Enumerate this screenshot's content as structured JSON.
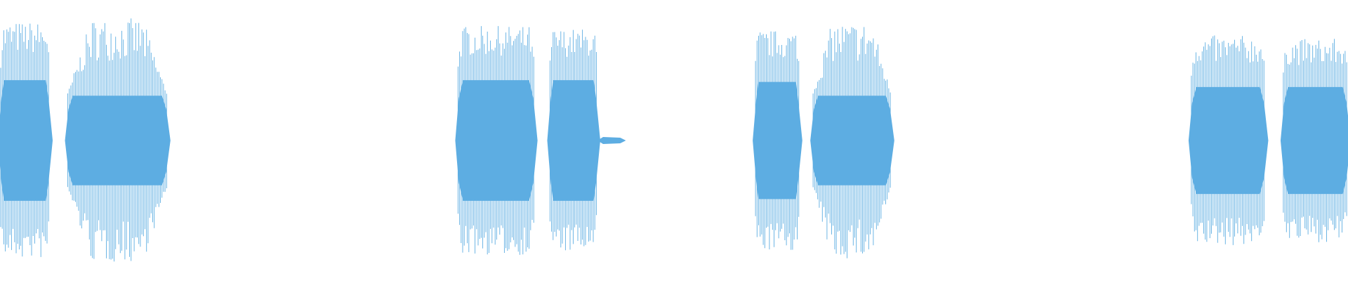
{
  "waveform": {
    "color": "#5dade2"
  }
}
